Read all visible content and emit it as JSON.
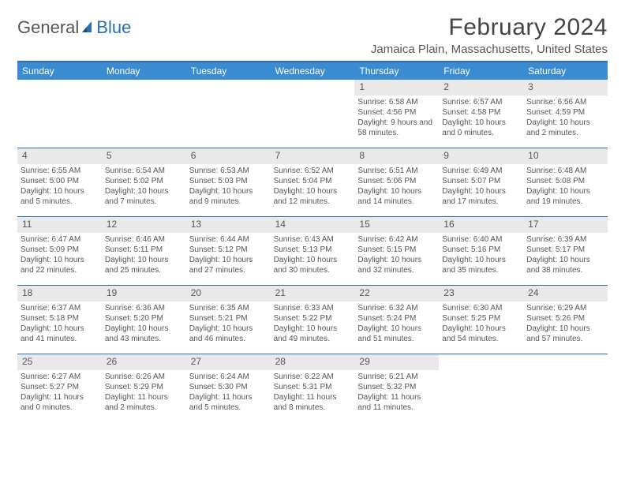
{
  "logo": {
    "text1": "General",
    "text2": "Blue"
  },
  "title": "February 2024",
  "location": "Jamaica Plain, Massachusetts, United States",
  "colors": {
    "header_bar": "#3a8bd0",
    "border": "#2a6fb5",
    "daynum_bg": "#e9e9e9",
    "text": "#555555"
  },
  "dow": [
    "Sunday",
    "Monday",
    "Tuesday",
    "Wednesday",
    "Thursday",
    "Friday",
    "Saturday"
  ],
  "weeks": [
    [
      {
        "n": "",
        "sr": "",
        "ss": "",
        "dl": ""
      },
      {
        "n": "",
        "sr": "",
        "ss": "",
        "dl": ""
      },
      {
        "n": "",
        "sr": "",
        "ss": "",
        "dl": ""
      },
      {
        "n": "",
        "sr": "",
        "ss": "",
        "dl": ""
      },
      {
        "n": "1",
        "sr": "Sunrise: 6:58 AM",
        "ss": "Sunset: 4:56 PM",
        "dl": "Daylight: 9 hours and 58 minutes."
      },
      {
        "n": "2",
        "sr": "Sunrise: 6:57 AM",
        "ss": "Sunset: 4:58 PM",
        "dl": "Daylight: 10 hours and 0 minutes."
      },
      {
        "n": "3",
        "sr": "Sunrise: 6:56 AM",
        "ss": "Sunset: 4:59 PM",
        "dl": "Daylight: 10 hours and 2 minutes."
      }
    ],
    [
      {
        "n": "4",
        "sr": "Sunrise: 6:55 AM",
        "ss": "Sunset: 5:00 PM",
        "dl": "Daylight: 10 hours and 5 minutes."
      },
      {
        "n": "5",
        "sr": "Sunrise: 6:54 AM",
        "ss": "Sunset: 5:02 PM",
        "dl": "Daylight: 10 hours and 7 minutes."
      },
      {
        "n": "6",
        "sr": "Sunrise: 6:53 AM",
        "ss": "Sunset: 5:03 PM",
        "dl": "Daylight: 10 hours and 9 minutes."
      },
      {
        "n": "7",
        "sr": "Sunrise: 6:52 AM",
        "ss": "Sunset: 5:04 PM",
        "dl": "Daylight: 10 hours and 12 minutes."
      },
      {
        "n": "8",
        "sr": "Sunrise: 6:51 AM",
        "ss": "Sunset: 5:06 PM",
        "dl": "Daylight: 10 hours and 14 minutes."
      },
      {
        "n": "9",
        "sr": "Sunrise: 6:49 AM",
        "ss": "Sunset: 5:07 PM",
        "dl": "Daylight: 10 hours and 17 minutes."
      },
      {
        "n": "10",
        "sr": "Sunrise: 6:48 AM",
        "ss": "Sunset: 5:08 PM",
        "dl": "Daylight: 10 hours and 19 minutes."
      }
    ],
    [
      {
        "n": "11",
        "sr": "Sunrise: 6:47 AM",
        "ss": "Sunset: 5:09 PM",
        "dl": "Daylight: 10 hours and 22 minutes."
      },
      {
        "n": "12",
        "sr": "Sunrise: 6:46 AM",
        "ss": "Sunset: 5:11 PM",
        "dl": "Daylight: 10 hours and 25 minutes."
      },
      {
        "n": "13",
        "sr": "Sunrise: 6:44 AM",
        "ss": "Sunset: 5:12 PM",
        "dl": "Daylight: 10 hours and 27 minutes."
      },
      {
        "n": "14",
        "sr": "Sunrise: 6:43 AM",
        "ss": "Sunset: 5:13 PM",
        "dl": "Daylight: 10 hours and 30 minutes."
      },
      {
        "n": "15",
        "sr": "Sunrise: 6:42 AM",
        "ss": "Sunset: 5:15 PM",
        "dl": "Daylight: 10 hours and 32 minutes."
      },
      {
        "n": "16",
        "sr": "Sunrise: 6:40 AM",
        "ss": "Sunset: 5:16 PM",
        "dl": "Daylight: 10 hours and 35 minutes."
      },
      {
        "n": "17",
        "sr": "Sunrise: 6:39 AM",
        "ss": "Sunset: 5:17 PM",
        "dl": "Daylight: 10 hours and 38 minutes."
      }
    ],
    [
      {
        "n": "18",
        "sr": "Sunrise: 6:37 AM",
        "ss": "Sunset: 5:18 PM",
        "dl": "Daylight: 10 hours and 41 minutes."
      },
      {
        "n": "19",
        "sr": "Sunrise: 6:36 AM",
        "ss": "Sunset: 5:20 PM",
        "dl": "Daylight: 10 hours and 43 minutes."
      },
      {
        "n": "20",
        "sr": "Sunrise: 6:35 AM",
        "ss": "Sunset: 5:21 PM",
        "dl": "Daylight: 10 hours and 46 minutes."
      },
      {
        "n": "21",
        "sr": "Sunrise: 6:33 AM",
        "ss": "Sunset: 5:22 PM",
        "dl": "Daylight: 10 hours and 49 minutes."
      },
      {
        "n": "22",
        "sr": "Sunrise: 6:32 AM",
        "ss": "Sunset: 5:24 PM",
        "dl": "Daylight: 10 hours and 51 minutes."
      },
      {
        "n": "23",
        "sr": "Sunrise: 6:30 AM",
        "ss": "Sunset: 5:25 PM",
        "dl": "Daylight: 10 hours and 54 minutes."
      },
      {
        "n": "24",
        "sr": "Sunrise: 6:29 AM",
        "ss": "Sunset: 5:26 PM",
        "dl": "Daylight: 10 hours and 57 minutes."
      }
    ],
    [
      {
        "n": "25",
        "sr": "Sunrise: 6:27 AM",
        "ss": "Sunset: 5:27 PM",
        "dl": "Daylight: 11 hours and 0 minutes."
      },
      {
        "n": "26",
        "sr": "Sunrise: 6:26 AM",
        "ss": "Sunset: 5:29 PM",
        "dl": "Daylight: 11 hours and 2 minutes."
      },
      {
        "n": "27",
        "sr": "Sunrise: 6:24 AM",
        "ss": "Sunset: 5:30 PM",
        "dl": "Daylight: 11 hours and 5 minutes."
      },
      {
        "n": "28",
        "sr": "Sunrise: 6:22 AM",
        "ss": "Sunset: 5:31 PM",
        "dl": "Daylight: 11 hours and 8 minutes."
      },
      {
        "n": "29",
        "sr": "Sunrise: 6:21 AM",
        "ss": "Sunset: 5:32 PM",
        "dl": "Daylight: 11 hours and 11 minutes."
      },
      {
        "n": "",
        "sr": "",
        "ss": "",
        "dl": ""
      },
      {
        "n": "",
        "sr": "",
        "ss": "",
        "dl": ""
      }
    ]
  ]
}
